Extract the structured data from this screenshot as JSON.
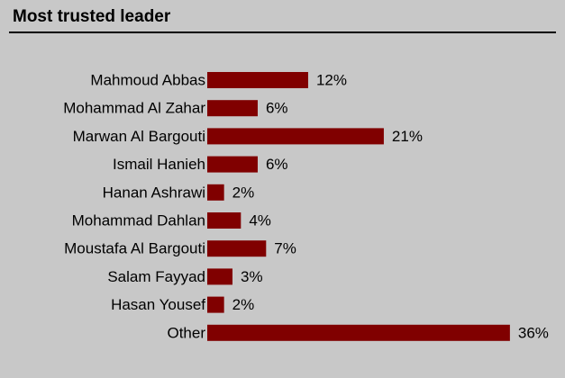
{
  "chart_data": {
    "type": "bar",
    "orientation": "horizontal",
    "title": "Most trusted leader",
    "categories": [
      "Mahmoud Abbas",
      "Mohammad Al Zahar",
      "Marwan Al Bargouti",
      "Ismail Hanieh",
      "Hanan Ashrawi",
      "Mohammad Dahlan",
      "Moustafa Al Bargouti",
      "Salam Fayyad",
      "Hasan Yousef",
      "Other"
    ],
    "values": [
      12,
      6,
      21,
      6,
      2,
      4,
      7,
      3,
      2,
      36
    ],
    "value_labels": [
      "12%",
      "6%",
      "21%",
      "6%",
      "2%",
      "4%",
      "7%",
      "3%",
      "2%",
      "36%"
    ],
    "color": "#800000"
  }
}
